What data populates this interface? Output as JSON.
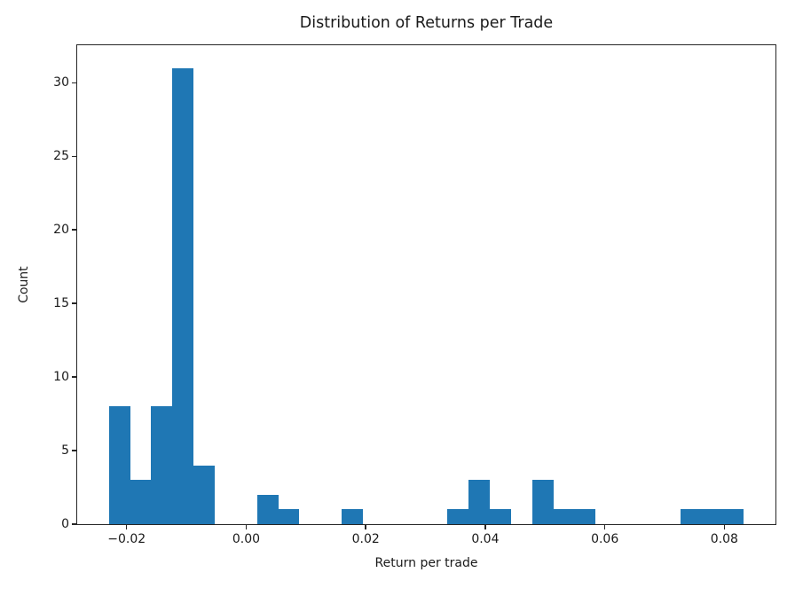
{
  "window": {
    "background": "#ffffff"
  },
  "chart_data": {
    "type": "bar",
    "subtype": "histogram",
    "title": "Distribution of Returns per Trade",
    "xlabel": "Return per trade",
    "ylabel": "Count",
    "bar_color": "#1f77b4",
    "axis_color": "#262626",
    "text_color": "#1a1a1a",
    "grid": false,
    "legend": false,
    "xlim": [
      -0.02827,
      0.08855
    ],
    "ylim": [
      0,
      32.55
    ],
    "bins": {
      "start": -0.02296,
      "width": 0.003541,
      "counts": [
        8,
        3,
        8,
        31,
        4,
        0,
        0,
        2,
        1,
        0,
        0,
        1,
        0,
        0,
        0,
        0,
        1,
        3,
        1,
        0,
        3,
        1,
        1,
        0,
        0,
        0,
        0,
        1,
        1,
        1
      ]
    },
    "xticks": [
      {
        "value": -0.02,
        "label": "−0.02"
      },
      {
        "value": 0.0,
        "label": "0.00"
      },
      {
        "value": 0.02,
        "label": "0.02"
      },
      {
        "value": 0.04,
        "label": "0.04"
      },
      {
        "value": 0.06,
        "label": "0.06"
      },
      {
        "value": 0.08,
        "label": "0.08"
      }
    ],
    "yticks": [
      {
        "value": 0,
        "label": "0"
      },
      {
        "value": 5,
        "label": "5"
      },
      {
        "value": 10,
        "label": "10"
      },
      {
        "value": 15,
        "label": "15"
      },
      {
        "value": 20,
        "label": "20"
      },
      {
        "value": 25,
        "label": "25"
      },
      {
        "value": 30,
        "label": "30"
      }
    ]
  }
}
